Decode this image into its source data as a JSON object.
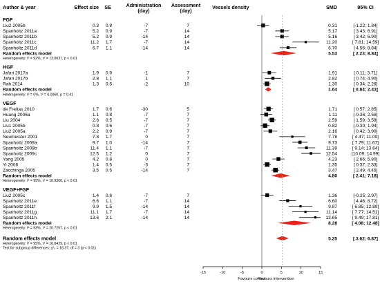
{
  "chart_data": {
    "type": "forest",
    "columns": {
      "study": "Author & year",
      "effect": "Effect size",
      "se": "SE",
      "admin": "Administration\n(day)",
      "assess": "Assessment\n(day)",
      "plot": "Vessels density",
      "smd": "SMD",
      "ci": "95% CI"
    },
    "x_axis": {
      "ticks": [
        -15,
        -10,
        -5,
        0,
        5,
        10,
        15
      ],
      "xlim": [
        -15,
        15
      ],
      "reference_line": 0,
      "dashed_line": 5.25,
      "left_label": "Favours control",
      "right_label": "Favours intervention"
    },
    "groups": [
      {
        "name": "FGF",
        "studies": [
          {
            "study": "Liu2 2005b",
            "effect": "0.3",
            "se": "0.8",
            "admin": "-7",
            "assess": "7",
            "smd": 0.31,
            "lo": -1.22,
            "hi": 1.84,
            "smd_text": "0.31",
            "ci_text": "[-1.22; 1.84]"
          },
          {
            "study": "Spanholtz 2011a",
            "effect": "5.2",
            "se": "0.9",
            "admin": "-7",
            "assess": "14",
            "smd": 5.17,
            "lo": 3.43,
            "hi": 6.91,
            "smd_text": "5.17",
            "ci_text": "[ 3.43; 6.91]"
          },
          {
            "study": "Spanholtz 2011b",
            "effect": "5.2",
            "se": "0.9",
            "admin": "-14",
            "assess": "14",
            "smd": 5.16,
            "lo": 3.42,
            "hi": 6.9,
            "smd_text": "5.16",
            "ci_text": "[ 3.42; 6.90]"
          },
          {
            "study": "Spanholtz 2011c",
            "effect": "11.2",
            "se": "1.7",
            "admin": "-7",
            "assess": "14",
            "smd": 11.2,
            "lo": 7.81,
            "hi": 14.59,
            "smd_text": "11.20",
            "ci_text": "[ 7.81; 14.59]"
          },
          {
            "study": "Spanholtz 2011d",
            "effect": "6.7",
            "se": "1.1",
            "admin": "-14",
            "assess": "14",
            "smd": 6.7,
            "lo": 4.56,
            "hi": 8.84,
            "smd_text": "6.70",
            "ci_text": "[ 4.56; 8.84]"
          }
        ],
        "pooled": {
          "label": "Random effects model",
          "smd": 5.53,
          "lo": 2.23,
          "hi": 8.84,
          "smd_text": "5.53",
          "ci_text": "[ 2.23; 8.84]"
        },
        "heterogeneity": "Heterogeneity: I² = 92%, τ² = 13.0037, p < 0.01"
      },
      {
        "name": "HGF",
        "studies": [
          {
            "study": "Jafari 2017a",
            "effect": "1.9",
            "se": "0.9",
            "admin": "-1",
            "assess": "7",
            "smd": 1.91,
            "lo": 0.11,
            "hi": 3.71,
            "smd_text": "1.91",
            "ci_text": "[ 0.11; 3.71]"
          },
          {
            "study": "Jafari 2017b",
            "effect": "2.8",
            "se": "1.1",
            "admin": "1",
            "assess": "7",
            "smd": 2.82,
            "lo": 0.74,
            "hi": 4.9,
            "smd_text": "2.82",
            "ci_text": "[ 0.74; 4.90]"
          },
          {
            "study": "Rah 2014",
            "effect": "1.3",
            "se": "0.5",
            "admin": "-2",
            "assess": "10",
            "smd": 1.3,
            "lo": 0.34,
            "hi": 2.26,
            "smd_text": "1.30",
            "ci_text": "[ 0.34; 2.26]"
          }
        ],
        "pooled": {
          "label": "Random effects model",
          "smd": 1.64,
          "lo": 0.84,
          "hi": 2.43,
          "smd_text": "1.64",
          "ci_text": "[ 0.84; 2.43]"
        },
        "heterogeneity": "Heterogeneity: I² = 0%, τ² = 0.0060, p = 0.41"
      },
      {
        "name": "VEGF",
        "studies": [
          {
            "study": "de Freitas 2010",
            "effect": "1.7",
            "se": "0.6",
            "admin": "-30",
            "assess": "5",
            "smd": 1.71,
            "lo": 0.57,
            "hi": 2.85,
            "smd_text": "1.71",
            "ci_text": "[ 0.57; 2.85]"
          },
          {
            "study": "Huang 2006a",
            "effect": "1.1",
            "se": "0.8",
            "admin": "-7",
            "assess": "7",
            "smd": 1.11,
            "lo": -0.36,
            "hi": 2.58,
            "smd_text": "1.11",
            "ci_text": "[-0.36; 2.58]"
          },
          {
            "study": "Liu 2004",
            "effect": "2.6",
            "se": "0.5",
            "admin": "-7",
            "assess": "7",
            "smd": 2.59,
            "lo": 1.59,
            "hi": 3.59,
            "smd_text": "2.59",
            "ci_text": "[ 1.59; 3.59]"
          },
          {
            "study": "Liu1 2005b",
            "effect": "0.8",
            "se": "0.6",
            "admin": "-7",
            "assess": "7",
            "smd": 0.82,
            "lo": -0.3,
            "hi": 1.94,
            "smd_text": "0.82",
            "ci_text": "[-0.30; 1.94]"
          },
          {
            "study": "Liu2 2005a",
            "effect": "2.2",
            "se": "0.9",
            "admin": "-7",
            "assess": "7",
            "smd": 2.16,
            "lo": 0.42,
            "hi": 3.9,
            "smd_text": "2.16",
            "ci_text": "[ 0.42; 3.90]"
          },
          {
            "study": "Neumeister 2001",
            "effect": "7.8",
            "se": "1.7",
            "admin": "0",
            "assess": "7",
            "smd": 7.78,
            "lo": 4.47,
            "hi": 11.09,
            "smd_text": "7.78",
            "ci_text": "[ 4.47; 11.09]"
          },
          {
            "study": "Spanholtz 2009a",
            "effect": "9.7",
            "se": "1.0",
            "admin": "-14",
            "assess": "7",
            "smd": 9.73,
            "lo": 7.79,
            "hi": 11.67,
            "smd_text": "9.73",
            "ci_text": "[ 7.79; 11.67]"
          },
          {
            "study": "Spanholtz 2009b",
            "effect": "11.4",
            "se": "1.1",
            "admin": "-7",
            "assess": "7",
            "smd": 11.39,
            "lo": 9.14,
            "hi": 13.64,
            "smd_text": "11.39",
            "ci_text": "[ 9.14; 13.64]"
          },
          {
            "study": "Spanholtz 2009c",
            "effect": "12.5",
            "se": "1.2",
            "admin": "0",
            "assess": "7",
            "smd": 12.54,
            "lo": 10.09,
            "hi": 14.99,
            "smd_text": "12.54",
            "ci_text": "[10.09; 14.99]"
          },
          {
            "study": "Yang 2005",
            "effect": "4.2",
            "se": "0.8",
            "admin": "0",
            "assess": "7",
            "smd": 4.23,
            "lo": 2.66,
            "hi": 5.8,
            "smd_text": "4.23",
            "ci_text": "[ 2.66; 5.80]"
          },
          {
            "study": "Yi 2006",
            "effect": "1.4",
            "se": "0.5",
            "admin": "-3",
            "assess": "7",
            "smd": 1.35,
            "lo": 0.37,
            "hi": 2.33,
            "smd_text": "1.35",
            "ci_text": "[ 0.37; 2.33]"
          },
          {
            "study": "Zacchinga 2005",
            "effect": "3.5",
            "se": "0.5",
            "admin": "-14",
            "assess": "7",
            "smd": 3.47,
            "lo": 2.49,
            "hi": 4.45,
            "smd_text": "3.47",
            "ci_text": "[ 2.49; 4.45]"
          }
        ],
        "pooled": {
          "label": "Random effects model",
          "smd": 4.8,
          "lo": 2.41,
          "hi": 7.18,
          "smd_text": "4.80",
          "ci_text": "[ 2.41; 7.18]"
        },
        "heterogeneity": "Heterogeneity: I² = 95%, τ² = 16.9300, p < 0.01"
      },
      {
        "name": "VEGF+FGF",
        "studies": [
          {
            "study": "Liu2 2005c",
            "effect": "1.4",
            "se": "0.8",
            "admin": "-7",
            "assess": "7",
            "smd": 1.36,
            "lo": -0.25,
            "hi": 2.97,
            "smd_text": "1.36",
            "ci_text": "[-0.25; 2.97]"
          },
          {
            "study": "Spanholtz 2011e",
            "effect": "6.6",
            "se": "1.1",
            "admin": "-7",
            "assess": "14",
            "smd": 6.6,
            "lo": 4.48,
            "hi": 8.72,
            "smd_text": "6.60",
            "ci_text": "[ 4.48; 8.72]"
          },
          {
            "study": "Spanholtz 2011f",
            "effect": "9.9",
            "se": "1.5",
            "admin": "-14",
            "assess": "14",
            "smd": 9.87,
            "lo": 6.85,
            "hi": 12.89,
            "smd_text": "9.87",
            "ci_text": "[ 6.85; 12.89]"
          },
          {
            "study": "Spanholtz 2011g",
            "effect": "11.1",
            "se": "1.7",
            "admin": "-7",
            "assess": "14",
            "smd": 11.14,
            "lo": 7.77,
            "hi": 14.51,
            "smd_text": "11.14",
            "ci_text": "[ 7.77; 14.51]"
          },
          {
            "study": "Spanholtz 2011h",
            "effect": "13.6",
            "se": "2.1",
            "admin": "-14",
            "assess": "14",
            "smd": 13.65,
            "lo": 9.49,
            "hi": 17.81,
            "smd_text": "13.65",
            "ci_text": "[ 9.49; 17.81]"
          }
        ],
        "pooled": {
          "label": "Random effects model",
          "smd": 8.28,
          "lo": 4.08,
          "hi": 12.48,
          "smd_text": "8.28",
          "ci_text": "[ 4.08; 12.48]"
        },
        "heterogeneity": "Heterogeneity: I² = 93%, τ² = 20.7257, p < 0.01"
      }
    ],
    "overall": {
      "label": "Random effects model",
      "smd": 5.25,
      "lo": 3.62,
      "hi": 6.87,
      "smd_text": "5.25",
      "ci_text": "[ 3.62; 6.87]",
      "heterogeneity": "Heterogeneity: I² = 95%, τ² = 16.0429, p < 0.01",
      "subgroup_test": "Test for subgroup differences: χ²₃ = 18.37, df = 3 (p < 0.01)"
    },
    "colors": {
      "diamond": "#e8231a",
      "marker": "#000000",
      "reference": "#555555",
      "dashed": "#999999"
    }
  }
}
